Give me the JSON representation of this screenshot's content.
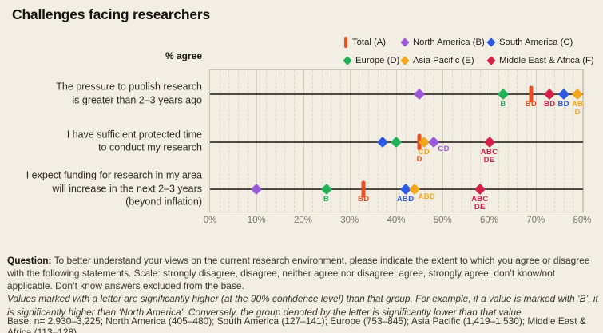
{
  "title": "Challenges facing researchers",
  "axis_label": "% agree",
  "chart_data": {
    "type": "scatter",
    "title": "Challenges facing researchers",
    "value_label": "% agree",
    "xlim": [
      0,
      80
    ],
    "x_tick_values": [
      0,
      10,
      20,
      30,
      40,
      50,
      60,
      70,
      80
    ],
    "x_tick_labels": [
      "0%",
      "10%",
      "20%",
      "30%",
      "40%",
      "50%",
      "60%",
      "70%",
      "80%"
    ],
    "minor_grid_step": 2,
    "grid": "on",
    "legend_position": "top-right",
    "series_meta": {
      "A": {
        "label": "Total (A)",
        "color": "#e94e20",
        "marker": "bar"
      },
      "B": {
        "label": "North America (B)",
        "color": "#9c59d8",
        "marker": "diamond"
      },
      "C": {
        "label": "South America (C)",
        "color": "#2d5ae2",
        "marker": "diamond"
      },
      "D": {
        "label": "Europe (D)",
        "color": "#20b257",
        "marker": "diamond"
      },
      "E": {
        "label": "Asia Pacific (E)",
        "color": "#f2a71c",
        "marker": "diamond"
      },
      "F": {
        "label": "Middle East & Africa (F)",
        "color": "#d52048",
        "marker": "diamond"
      }
    },
    "legend_order": [
      [
        "A",
        "B",
        "C"
      ],
      [
        "D",
        "E",
        "F"
      ]
    ],
    "rows": [
      {
        "category": "The pressure to publish research is greater than 2–3 years ago",
        "category_lines": [
          "The pressure to publish research",
          "is greater than 2–3 years ago"
        ],
        "points": [
          {
            "series": "B",
            "value": 45,
            "sig": []
          },
          {
            "series": "D",
            "value": 63,
            "sig": [
              "B"
            ]
          },
          {
            "series": "A",
            "value": 69,
            "sig": [
              "BD"
            ]
          },
          {
            "series": "F",
            "value": 73,
            "sig": [
              "BD"
            ]
          },
          {
            "series": "C",
            "value": 76,
            "sig": [
              "BD"
            ]
          },
          {
            "series": "E",
            "value": 79,
            "sig": [
              "AB",
              "D"
            ]
          }
        ]
      },
      {
        "category": "I have sufficient protected time to conduct my research",
        "category_lines": [
          "I have sufficient protected time",
          "to conduct my research"
        ],
        "points": [
          {
            "series": "C",
            "value": 37,
            "sig": []
          },
          {
            "series": "D",
            "value": 40,
            "sig": []
          },
          {
            "series": "A",
            "value": 45,
            "sig": [
              "D"
            ],
            "sig_dy": 9
          },
          {
            "series": "E",
            "value": 46,
            "sig": [
              "CD"
            ]
          },
          {
            "series": "B",
            "value": 48,
            "sig": [
              "CD"
            ],
            "sig_dx": 13,
            "sig_dy": -4
          },
          {
            "series": "F",
            "value": 60,
            "sig": [
              "ABC",
              "DE"
            ]
          }
        ]
      },
      {
        "category": "I expect funding for research in my area will increase in the next 2–3 years (beyond inflation)",
        "category_lines": [
          "I expect funding for research in my area",
          "will increase in the next 2–3 years",
          "(beyond inflation)"
        ],
        "points": [
          {
            "series": "B",
            "value": 10,
            "sig": []
          },
          {
            "series": "D",
            "value": 25,
            "sig": [
              "B"
            ]
          },
          {
            "series": "A",
            "value": 33,
            "sig": [
              "BD"
            ]
          },
          {
            "series": "C",
            "value": 42,
            "sig": [
              "ABD"
            ]
          },
          {
            "series": "E",
            "value": 44,
            "sig": [
              "ABD"
            ],
            "sig_dx": 15,
            "sig_dy": -3
          },
          {
            "series": "F",
            "value": 58,
            "sig": [
              "ABC",
              "DE"
            ]
          }
        ]
      }
    ]
  },
  "footer": {
    "question_label": "Question:",
    "question_text": " To better understand your views on the current research environment, please indicate the extent to which you agree or disagree with the following statements. Scale: strongly disagree, disagree, neither agree nor disagree, agree, strongly agree, don’t know/not applicable. Don’t know answers excluded from the base.",
    "note": "Values marked with a letter are significantly higher (at the 90% confidence level) than that group. For example, if a value is marked with ‘B’, it is significantly higher than ‘North America’. Conversely, the group denoted by the letter is significantly lower than that value.",
    "base": "Base: n= 2,930–3,225; North America (405–480); South America (127–141); Europe (753–845); Asia Pacific (1,419–1,530); Middle East & Africa (113–128)."
  }
}
